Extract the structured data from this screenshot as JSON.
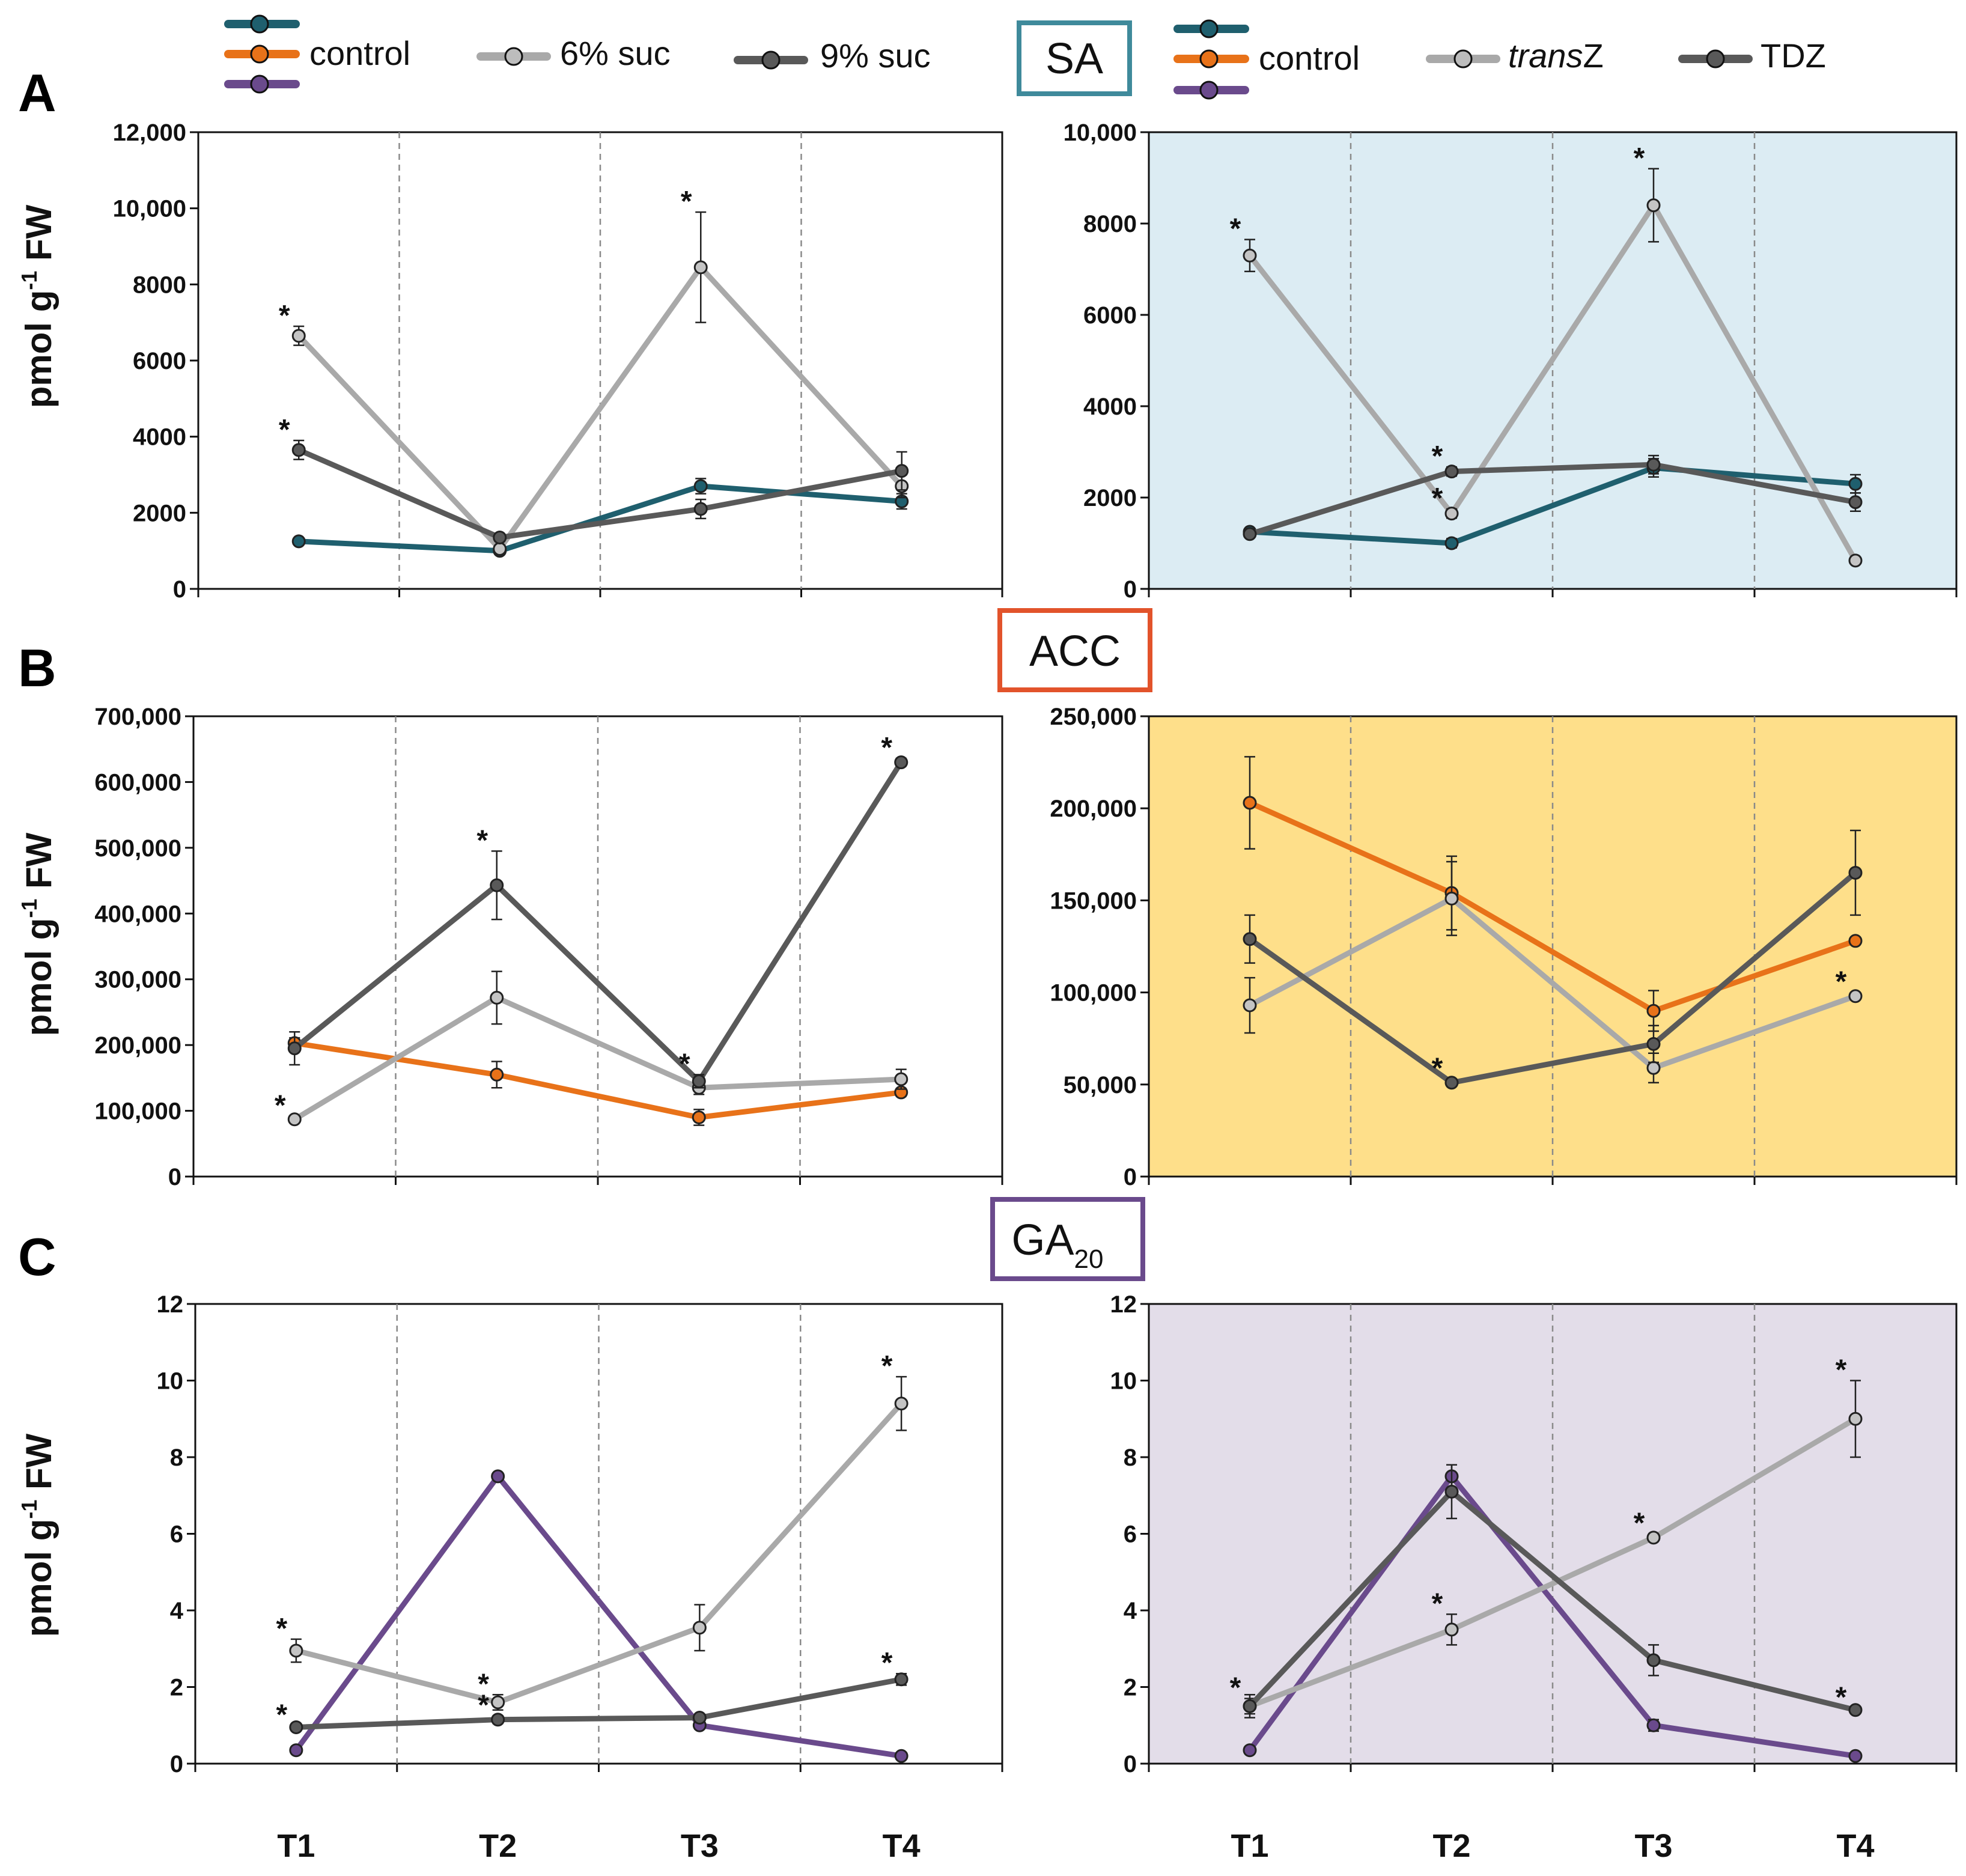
{
  "colors": {
    "teal": "#1f5f6e",
    "orange": "#e87219",
    "purple": "#6a4a8c",
    "light_gray": "#a9a9a9",
    "dark_gray": "#595959",
    "bg_sa": "#dcecf3",
    "bg_acc": "#fedf8a",
    "bg_ga": "#e3dde9",
    "sa_box": "#3f8a9b",
    "acc_box": "#e2532b",
    "ga_box": "#6a4a8c"
  },
  "legend_left": {
    "control": "control",
    "s6": "6% suc",
    "s9": "9% suc"
  },
  "legend_right": {
    "control": "control",
    "trans_italic": "trans",
    "trans_rest": "Z",
    "tdz": "TDZ"
  },
  "labels": {
    "panel_a": "A",
    "panel_b": "B",
    "panel_c": "C",
    "sa": "SA",
    "acc": "ACC",
    "ga_main": "GA",
    "ga_sub": "20",
    "ylabel_main": "pmol g",
    "ylabel_exp": "-1",
    "ylabel_rest": " FW",
    "star": "*"
  },
  "chart_data": [
    {
      "id": "A_left",
      "type": "line",
      "hormone": "SA",
      "categories": [
        "T1",
        "T2",
        "T3",
        "T4"
      ],
      "xtick_labels": [
        "",
        "",
        "",
        ""
      ],
      "ylim": [
        0,
        12000
      ],
      "yticks": [
        0,
        2000,
        4000,
        6000,
        8000,
        10000,
        12000
      ],
      "ytick_labels": [
        "0",
        "2000",
        "4000",
        "6000",
        "8000",
        "10,000",
        "12,000"
      ],
      "ylabel": "pmol g-1 FW",
      "series": [
        {
          "name": "control",
          "color": "teal",
          "values": [
            1250,
            1000,
            2700,
            2300
          ],
          "err": [
            60,
            60,
            200,
            200
          ],
          "stars": []
        },
        {
          "name": "6% suc",
          "color": "light_gray",
          "values": [
            6650,
            1050,
            8450,
            2700
          ],
          "err": [
            250,
            60,
            1450,
            300
          ],
          "stars": [
            0,
            2
          ]
        },
        {
          "name": "9% suc",
          "color": "dark_gray",
          "values": [
            3650,
            1350,
            2100,
            3100
          ],
          "err": [
            250,
            100,
            250,
            500
          ],
          "stars": [
            0
          ]
        }
      ]
    },
    {
      "id": "A_right",
      "type": "line",
      "hormone": "SA",
      "categories": [
        "T1",
        "T2",
        "T3",
        "T4"
      ],
      "xtick_labels": [
        "",
        "",
        "",
        ""
      ],
      "ylim": [
        0,
        10000
      ],
      "yticks": [
        0,
        2000,
        4000,
        6000,
        8000,
        10000
      ],
      "ytick_labels": [
        "0",
        "2000",
        "4000",
        "6000",
        "8000",
        "10,000"
      ],
      "series": [
        {
          "name": "control",
          "color": "teal",
          "values": [
            1250,
            1000,
            2650,
            2300
          ],
          "err": [
            60,
            100,
            200,
            200
          ],
          "stars": []
        },
        {
          "name": "transZ",
          "color": "light_gray",
          "values": [
            7300,
            1650,
            8400,
            620
          ],
          "err": [
            350,
            100,
            800,
            60
          ],
          "stars": [
            0,
            1,
            2
          ]
        },
        {
          "name": "TDZ",
          "color": "dark_gray",
          "values": [
            1200,
            2570,
            2720,
            1900
          ],
          "err": [
            60,
            100,
            200,
            200
          ],
          "stars": [
            1
          ]
        }
      ]
    },
    {
      "id": "B_left",
      "type": "line",
      "hormone": "ACC",
      "categories": [
        "T1",
        "T2",
        "T3",
        "T4"
      ],
      "xtick_labels": [
        "",
        "",
        "",
        ""
      ],
      "ylim": [
        0,
        700000
      ],
      "yticks": [
        0,
        100000,
        200000,
        300000,
        400000,
        500000,
        600000,
        700000
      ],
      "ytick_labels": [
        "0",
        "100,000",
        "200,000",
        "300,000",
        "400,000",
        "500,000",
        "600,000",
        "700,000"
      ],
      "ylabel": "pmol g-1 FW",
      "series": [
        {
          "name": "control",
          "color": "orange",
          "values": [
            203000,
            155000,
            90000,
            128000
          ],
          "err": [
            8000,
            20000,
            12000,
            6000
          ],
          "stars": []
        },
        {
          "name": "6% suc",
          "color": "light_gray",
          "values": [
            87000,
            272000,
            135000,
            148000
          ],
          "err": [
            5000,
            40000,
            10000,
            15000
          ],
          "stars": [
            0
          ]
        },
        {
          "name": "9% suc",
          "color": "dark_gray",
          "values": [
            195000,
            443000,
            145000,
            630000
          ],
          "err": [
            25000,
            52000,
            10000,
            6000
          ],
          "stars": [
            1,
            2,
            3
          ]
        }
      ]
    },
    {
      "id": "B_right",
      "type": "line",
      "hormone": "ACC",
      "categories": [
        "T1",
        "T2",
        "T3",
        "T4"
      ],
      "xtick_labels": [
        "",
        "",
        "",
        ""
      ],
      "ylim": [
        0,
        250000
      ],
      "yticks": [
        0,
        50000,
        100000,
        150000,
        200000,
        250000
      ],
      "ytick_labels": [
        "0",
        "50,000",
        "100,000",
        "150,000",
        "200,000",
        "250,000"
      ],
      "series": [
        {
          "name": "control",
          "color": "orange",
          "values": [
            203000,
            154000,
            90000,
            128000
          ],
          "err": [
            25000,
            20000,
            11000,
            2000
          ],
          "stars": []
        },
        {
          "name": "transZ",
          "color": "light_gray",
          "values": [
            93000,
            151000,
            59000,
            98000
          ],
          "err": [
            15000,
            20000,
            8000,
            2000
          ],
          "stars": [
            3
          ]
        },
        {
          "name": "TDZ",
          "color": "dark_gray",
          "values": [
            129000,
            51000,
            72000,
            165000
          ],
          "err": [
            13000,
            2000,
            10000,
            23000
          ],
          "stars": [
            1
          ]
        }
      ]
    },
    {
      "id": "C_left",
      "type": "line",
      "hormone": "GA20",
      "categories": [
        "T1",
        "T2",
        "T3",
        "T4"
      ],
      "xtick_labels": [
        "T1",
        "T2",
        "T3",
        "T4"
      ],
      "ylim": [
        0,
        12
      ],
      "yticks": [
        0,
        2,
        4,
        6,
        8,
        10,
        12
      ],
      "ytick_labels": [
        "0",
        "2",
        "4",
        "6",
        "8",
        "10",
        "12"
      ],
      "ylabel": "pmol g-1 FW",
      "series": [
        {
          "name": "control",
          "color": "purple",
          "values": [
            0.35,
            7.5,
            1.0,
            0.2
          ],
          "err": [
            0.05,
            0.05,
            0.1,
            0.05
          ],
          "stars": []
        },
        {
          "name": "6% suc",
          "color": "light_gray",
          "values": [
            2.95,
            1.6,
            3.55,
            9.4
          ],
          "err": [
            0.3,
            0.2,
            0.6,
            0.7
          ],
          "stars": [
            0,
            1,
            3
          ]
        },
        {
          "name": "9% suc",
          "color": "dark_gray",
          "values": [
            0.95,
            1.15,
            1.2,
            2.2
          ],
          "err": [
            0.05,
            0.1,
            0.1,
            0.15
          ],
          "stars": [
            0,
            1,
            3
          ]
        }
      ]
    },
    {
      "id": "C_right",
      "type": "line",
      "hormone": "GA20",
      "categories": [
        "T1",
        "T2",
        "T3",
        "T4"
      ],
      "xtick_labels": [
        "T1",
        "T2",
        "T3",
        "T4"
      ],
      "ylim": [
        0,
        12
      ],
      "yticks": [
        0,
        2,
        4,
        6,
        8,
        10,
        12
      ],
      "ytick_labels": [
        "0",
        "2",
        "4",
        "6",
        "8",
        "10",
        "12"
      ],
      "series": [
        {
          "name": "control",
          "color": "purple",
          "values": [
            0.35,
            7.5,
            1.0,
            0.2
          ],
          "err": [
            0.05,
            0.3,
            0.15,
            0.05
          ],
          "stars": []
        },
        {
          "name": "transZ",
          "color": "light_gray",
          "values": [
            1.5,
            3.5,
            5.9,
            9.0
          ],
          "err": [
            0.2,
            0.4,
            0.1,
            1.0
          ],
          "stars": [
            0,
            1,
            2,
            3
          ]
        },
        {
          "name": "TDZ",
          "color": "dark_gray",
          "values": [
            1.5,
            7.1,
            2.7,
            1.4
          ],
          "err": [
            0.3,
            0.7,
            0.4,
            0.05
          ],
          "stars": [
            3
          ]
        }
      ]
    }
  ]
}
